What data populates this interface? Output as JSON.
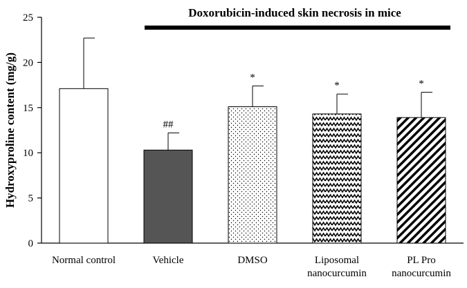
{
  "chart_data": {
    "type": "bar",
    "title": "Doxorubicin-induced skin necrosis in mice",
    "ylabel": "Hydroxyproline content (mg/g)",
    "xlabel": "",
    "ylim": [
      0,
      25
    ],
    "yticks": [
      0,
      5,
      10,
      15,
      20,
      25
    ],
    "grid": false,
    "categories": [
      [
        "Normal control"
      ],
      [
        "Vehicle"
      ],
      [
        "DMSO"
      ],
      [
        "Liposomal",
        "nanocurcumin"
      ],
      [
        "PL Pro",
        "nanocurcumin"
      ]
    ],
    "values": [
      17.1,
      10.3,
      15.1,
      14.3,
      13.9
    ],
    "errors": [
      5.6,
      1.9,
      2.3,
      2.2,
      2.8
    ],
    "annotations": [
      "",
      "##",
      "*",
      "*",
      "*"
    ],
    "bar_fills": [
      "white",
      "dark-gray",
      "dotted",
      "zigzag",
      "diagonal-stripes"
    ],
    "colors": {
      "bar_outline": "#000000",
      "vehicle_fill": "#555555",
      "axis": "#000000"
    }
  }
}
